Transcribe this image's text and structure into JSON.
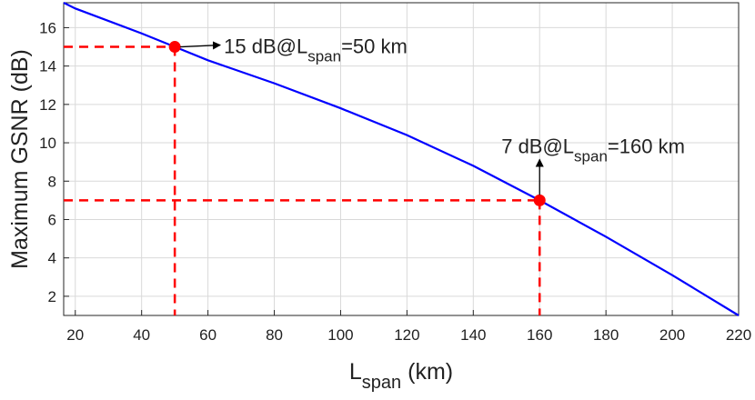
{
  "chart_data": {
    "type": "line",
    "x_label_parts": [
      "L",
      "span",
      " (km)"
    ],
    "y_label": "Maximum GSNR (dB)",
    "x": [
      16.5,
      20,
      40,
      50,
      60,
      80,
      100,
      120,
      140,
      160,
      180,
      200,
      220
    ],
    "series": [
      {
        "color": "#0000ff",
        "values": [
          17.3,
          17.0,
          15.7,
          15,
          14.3,
          13.1,
          11.8,
          10.4,
          8.8,
          7,
          5.1,
          3.1,
          1
        ]
      }
    ],
    "xlim": [
      16.5,
      220
    ],
    "ylim": [
      1,
      17.3
    ],
    "xticks": [
      20,
      40,
      60,
      80,
      100,
      120,
      140,
      160,
      180,
      200,
      220
    ],
    "yticks": [
      2,
      4,
      6,
      8,
      10,
      12,
      14,
      16
    ],
    "grid": true,
    "marker_color": "#ff0000",
    "markers": [
      {
        "x": 50,
        "y": 15,
        "label_parts": [
          "15 dB@L",
          "span",
          "=50 km"
        ]
      },
      {
        "x": 160,
        "y": 7,
        "label_parts": [
          "7 dB@L",
          "span",
          "=160 km"
        ]
      }
    ]
  }
}
